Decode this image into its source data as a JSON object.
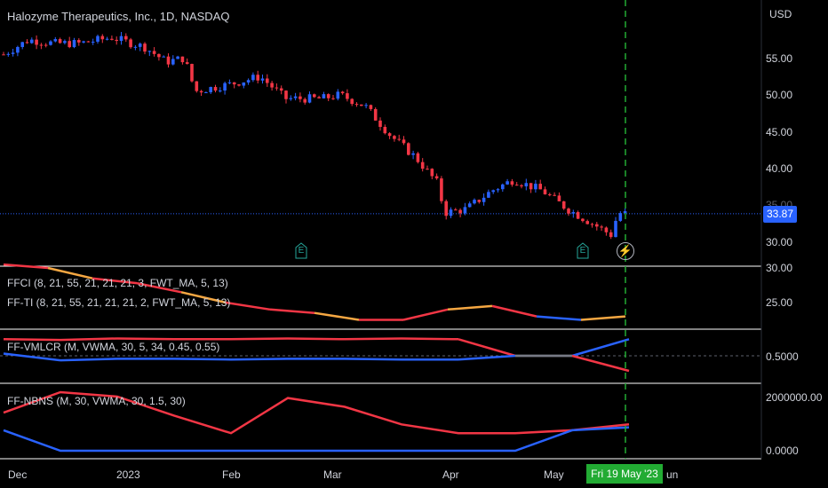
{
  "header": {
    "title": "Halozyme Therapeutics, Inc., 1D, NASDAQ",
    "currency": "USD"
  },
  "price_axis": {
    "labels": [
      "55.00",
      "50.00",
      "45.00",
      "40.00",
      "35.00",
      "30.00"
    ],
    "last_price": "33.87"
  },
  "time_axis": {
    "labels": [
      "Dec",
      "2023",
      "Feb",
      "Mar",
      "Apr",
      "May",
      "un"
    ],
    "crosshair_date": "Fri 19 May '23"
  },
  "events": {
    "earnings_label": "E",
    "split_icon": "bolt-icon"
  },
  "indicators": {
    "ffci": {
      "label": "FFCI (8, 21, 55, 21, 21, 21, 3, FWT_MA, 5, 13)",
      "axis_top": "30.00",
      "axis_val": "25.00"
    },
    "ffti": {
      "label": "FF-TI (8, 21, 55, 21, 21, 21, 2, FWT_MA, 5, 13)"
    },
    "vmlcr": {
      "label": "FF-VMLCR (M, VWMA, 30, 5, 34, 0.45, 0.55)",
      "axis_val": "0.5000"
    },
    "nbns": {
      "label": "FF-NBNS (M, 30, VWMA, 30, 1.5, 30)",
      "axis_top": "2000000.00",
      "axis_bottom": "0.0000"
    }
  },
  "colors": {
    "background": "#000000",
    "up": "#2962ff",
    "down": "#f23645",
    "orange": "#f5a742",
    "grey": "#787b86",
    "green_crosshair": "#22ab33",
    "earnings": "#26a69a"
  },
  "chart_data": [
    {
      "type": "candlestick",
      "title": "Halozyme Therapeutics, Inc., 1D, NASDAQ",
      "ylabel": "USD",
      "ylim": [
        27,
        59
      ],
      "dates": [
        "2022-12",
        "2023-01",
        "2023-02",
        "2023-03",
        "2023-04",
        "2023-05"
      ],
      "close_path": [
        {
          "date": "2022-11-28",
          "close": 55.5
        },
        {
          "date": "2022-12-05",
          "close": 57.5
        },
        {
          "date": "2022-12-12",
          "close": 57.0
        },
        {
          "date": "2022-12-19",
          "close": 57.0
        },
        {
          "date": "2022-12-28",
          "close": 57.8
        },
        {
          "date": "2023-01-06",
          "close": 56.5
        },
        {
          "date": "2023-01-12",
          "close": 54.5
        },
        {
          "date": "2023-01-17",
          "close": 55.0
        },
        {
          "date": "2023-01-20",
          "close": 50.5
        },
        {
          "date": "2023-01-30",
          "close": 51.5
        },
        {
          "date": "2023-02-07",
          "close": 52.5
        },
        {
          "date": "2023-02-14",
          "close": 49.5
        },
        {
          "date": "2023-02-24",
          "close": 49.5
        },
        {
          "date": "2023-03-01",
          "close": 50.0
        },
        {
          "date": "2023-03-08",
          "close": 48.5
        },
        {
          "date": "2023-03-15",
          "close": 44.5
        },
        {
          "date": "2023-03-22",
          "close": 41.5
        },
        {
          "date": "2023-03-28",
          "close": 38.0
        },
        {
          "date": "2023-03-30",
          "close": 34.0
        },
        {
          "date": "2023-04-05",
          "close": 34.5
        },
        {
          "date": "2023-04-12",
          "close": 37.0
        },
        {
          "date": "2023-04-18",
          "close": 38.5
        },
        {
          "date": "2023-04-26",
          "close": 37.0
        },
        {
          "date": "2023-05-03",
          "close": 34.5
        },
        {
          "date": "2023-05-10",
          "close": 32.5
        },
        {
          "date": "2023-05-15",
          "close": 31.0
        },
        {
          "date": "2023-05-17",
          "close": 34.0
        },
        {
          "date": "2023-05-19",
          "close": 33.87
        }
      ],
      "last_close": 33.87
    },
    {
      "type": "line",
      "title": "FFCI (8, 21, 55, 21, 21, 21, 3, FWT_MA, 5, 13)",
      "ylim": [
        20,
        30
      ],
      "series": [
        {
          "name": "FFCI",
          "values": [
            30.5,
            30.0,
            28.5,
            27.8,
            26.5,
            25.0,
            24.0,
            23.5,
            22.5,
            22.5,
            24.0,
            24.5,
            23.0,
            22.5,
            23.0
          ]
        }
      ]
    },
    {
      "type": "line",
      "title": "FF-VMLCR (M, VWMA, 30, 5, 34, 0.45, 0.55)",
      "series": [
        {
          "name": "upper",
          "values": [
            0.72,
            0.71,
            0.73,
            0.72,
            0.72,
            0.73,
            0.72,
            0.73,
            0.72,
            0.5,
            0.5,
            0.72
          ]
        },
        {
          "name": "lower",
          "values": [
            0.53,
            0.44,
            0.46,
            0.46,
            0.45,
            0.46,
            0.46,
            0.45,
            0.45,
            0.5,
            0.5,
            0.3
          ]
        }
      ],
      "reference": 0.5
    },
    {
      "type": "line",
      "title": "FF-NBNS (M, 30, VWMA, 30, 1.5, 30)",
      "ylim": [
        0,
        2000000
      ],
      "series": [
        {
          "name": "red",
          "values": [
            1300000,
            2000000,
            1850000,
            1200000,
            600000,
            1800000,
            1500000,
            900000,
            600000,
            600000,
            700000,
            900000
          ]
        },
        {
          "name": "blue",
          "values": [
            700000,
            0,
            0,
            0,
            0,
            0,
            0,
            0,
            0,
            0,
            700000,
            800000
          ]
        }
      ]
    }
  ]
}
